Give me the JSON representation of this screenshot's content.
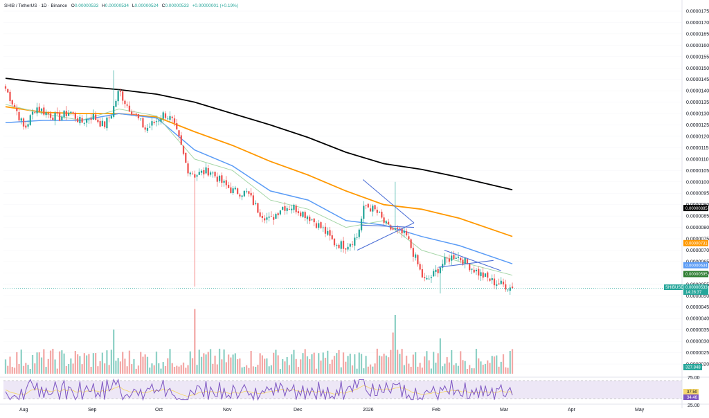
{
  "header": {
    "symbol": "SHIB",
    "separator": " / ",
    "pair": "TetherUS",
    "interval": "1D",
    "exchange": "Binance",
    "open_label": "O",
    "open_value": "0.00000533",
    "high_label": "H",
    "high_value": "0.00000534",
    "low_label": "L",
    "low_value": "0.00000524",
    "close_label": "C",
    "close_value": "0.00000533",
    "change": "+0.00000001 (+0.19%)"
  },
  "price_axis_labels": [
    "0.00001750",
    "0.00001700",
    "0.00001650",
    "0.00001600",
    "0.00001550",
    "0.00001500",
    "0.00001450",
    "0.00001400",
    "0.00001350",
    "0.00001300",
    "0.00001250",
    "0.00001200",
    "0.00001150",
    "0.00001100",
    "0.00001050",
    "0.00001000",
    "0.00000950",
    "0.00000900",
    "0.00000850",
    "0.00000800",
    "0.00000750",
    "0.00000700",
    "0.00000650",
    "0.00000600",
    "0.00000550",
    "0.00000500",
    "0.00000450",
    "0.00000400",
    "0.00000350",
    "0.00000300",
    "0.00000250",
    "0.00000200"
  ],
  "price_tags": [
    {
      "text": "0.00000885",
      "color": "#000000"
    },
    {
      "text": "0.00000731",
      "color": "#ff9800"
    },
    {
      "text": "0.00000634",
      "color": "#5b9cf6"
    },
    {
      "text": "0.00000595",
      "color": "#2e7d32"
    }
  ],
  "last_price_tag": {
    "symbol": "SHIBUSDT",
    "price": "0.00000533",
    "countdown": "14:28:37",
    "color": "#26a69a"
  },
  "volume_tag": {
    "text": "327.848",
    "color": "#26a69a"
  },
  "rsi_axis_labels": [
    "75.00",
    "25.00"
  ],
  "rsi_tags": [
    {
      "text": "37.50",
      "color": "#f5d76e"
    },
    {
      "text": "34.46",
      "color": "#7e57c2"
    }
  ],
  "date_labels": [
    "Aug",
    "Sep",
    "Oct",
    "Nov",
    "Dec",
    "2026",
    "Feb",
    "Mar",
    "Apr",
    "May"
  ],
  "colors": {
    "up": "#26a69a",
    "down": "#ef5350",
    "vol_up": "#8fd1c6",
    "vol_down": "#f3a9a7",
    "ma_black": "#000000",
    "ma_orange": "#ff9800",
    "ma_blue": "#5b9cf6",
    "ma_green": "#a5d6a7",
    "trendline": "#4c6fd6",
    "rsi": "#7e57c2",
    "rsi_signal": "#f5d76e",
    "rsi_band": "#ede7f6"
  },
  "chart_data": {
    "type": "candlestick",
    "symbol": "SHIB/USDT",
    "interval": "1D",
    "y_range": [
      2e-06,
      1.75e-05
    ],
    "x_labels": [
      "Aug",
      "Sep",
      "Oct",
      "Nov",
      "Dec",
      "2026",
      "Feb",
      "Mar",
      "Apr",
      "May"
    ],
    "key_price_points": [
      {
        "date": "late Jul",
        "close": 1.38e-05
      },
      {
        "date": "Aug",
        "close": 1.29e-05
      },
      {
        "date": "mid Sep",
        "close": 1.33e-05
      },
      {
        "date": "early Oct",
        "close": 1.27e-05
      },
      {
        "date": "Oct 10",
        "close": 1.02e-05
      },
      {
        "date": "Nov",
        "close": 9.2e-06
      },
      {
        "date": "Dec",
        "close": 8.5e-06
      },
      {
        "date": "late Dec",
        "close": 7.2e-06
      },
      {
        "date": "early Jan",
        "close": 8.9e-06
      },
      {
        "date": "late Jan",
        "close": 7.7e-06
      },
      {
        "date": "Feb",
        "close": 5.7e-06
      },
      {
        "date": "mid Feb",
        "close": 6.8e-06
      },
      {
        "date": "Mar",
        "close": 5.33e-06
      }
    ],
    "moving_averages": [
      {
        "color": "black",
        "last": 8.85e-06
      },
      {
        "color": "orange",
        "last": 7.31e-06
      },
      {
        "color": "blue",
        "last": 6.34e-06
      },
      {
        "color": "green",
        "last": 5.95e-06
      }
    ],
    "last_close": 5.33e-06,
    "volume_last": 327.848,
    "rsi": {
      "value": 34.46,
      "signal": 37.5,
      "levels": [
        75,
        25
      ]
    }
  }
}
